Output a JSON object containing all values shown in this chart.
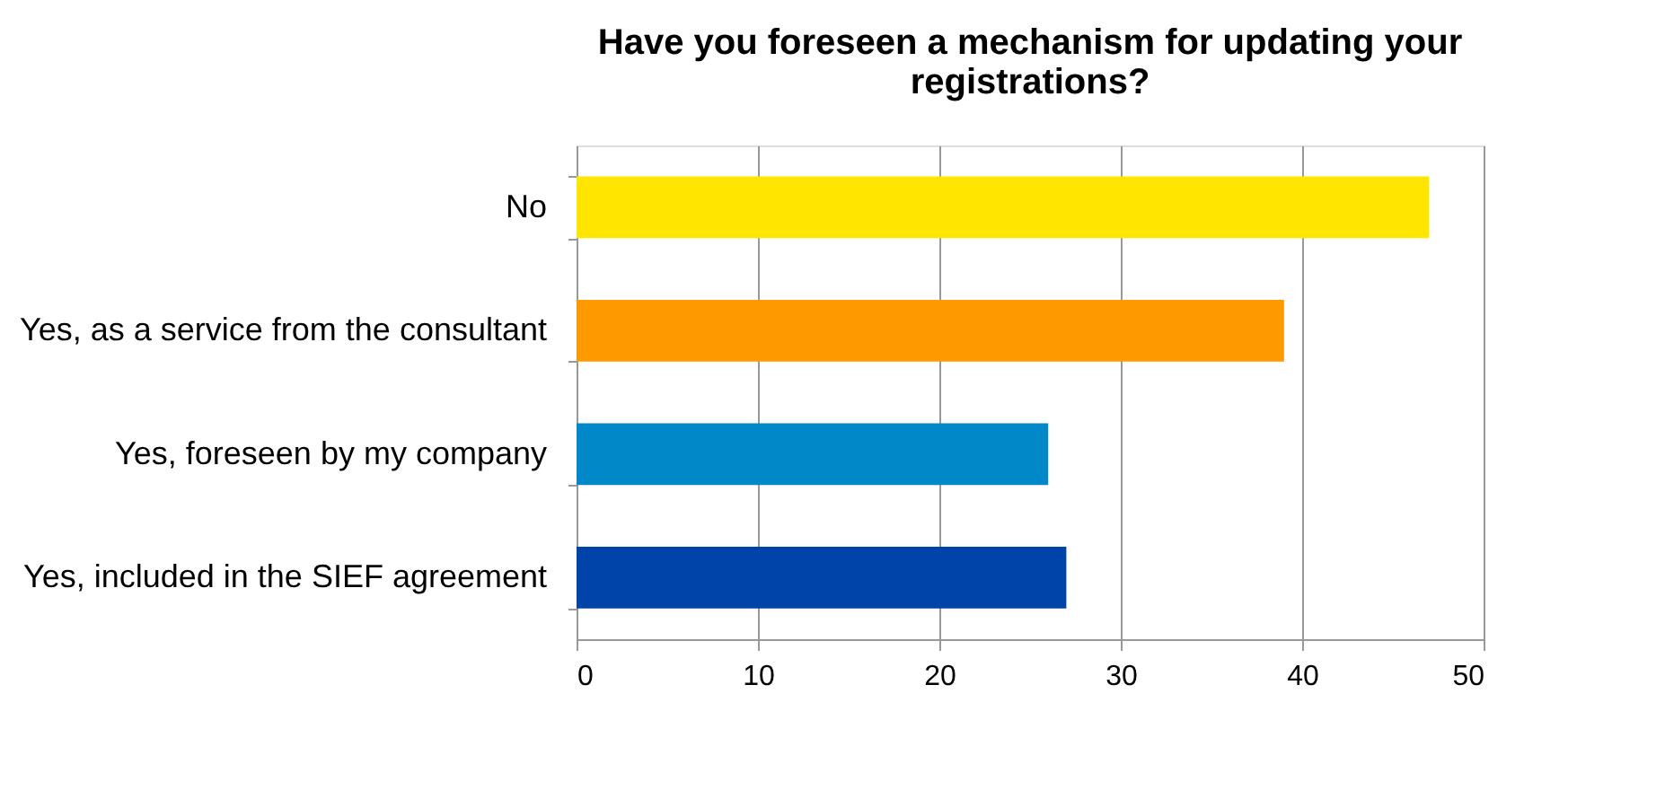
{
  "chart_data": {
    "type": "bar",
    "orientation": "horizontal",
    "title": "Have you foreseen a mechanism for updating your registrations?",
    "categories": [
      "No",
      "Yes, as a service from the consultant",
      "Yes, foreseen by my company",
      "Yes, included in the SIEF agreement"
    ],
    "values": [
      47,
      39,
      26,
      27
    ],
    "colors": [
      "#ffe500",
      "#ff9900",
      "#0088c8",
      "#0044aa"
    ],
    "xlim": [
      0,
      50
    ],
    "xticks": [
      0,
      10,
      20,
      30,
      40,
      50
    ],
    "grid": "x"
  }
}
